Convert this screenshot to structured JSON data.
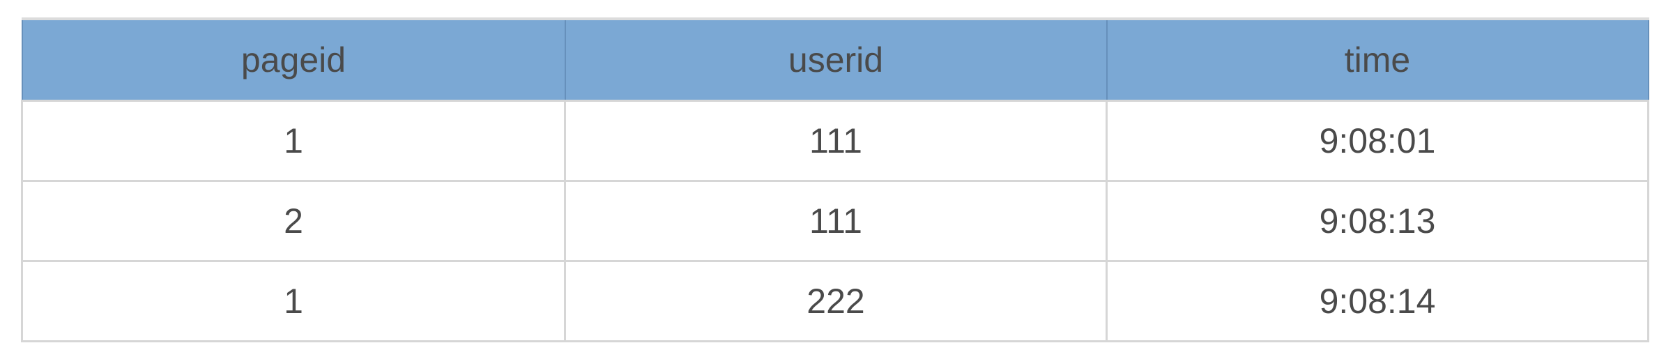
{
  "table": {
    "headers": [
      "pageid",
      "userid",
      "time"
    ],
    "rows": [
      [
        "1",
        "111",
        "9:08:01"
      ],
      [
        "2",
        "111",
        "9:08:13"
      ],
      [
        "1",
        "222",
        "9:08:14"
      ]
    ]
  },
  "colors": {
    "header_bg": "#7ba8d4",
    "text": "#4a4a4a",
    "border": "#d6d6d6"
  }
}
